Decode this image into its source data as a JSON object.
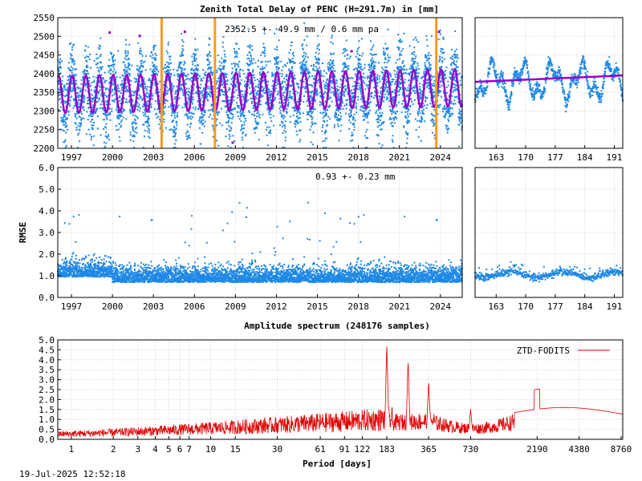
{
  "footer_date": "19-Jul-2025 12:52:18",
  "colors": {
    "blue": "#1e88e5",
    "purple": "#9b00c8",
    "orange": "#ff9a1e",
    "red": "#e00000"
  },
  "chart_data": [
    {
      "type": "scatter",
      "title": "Zenith Total Delay of PENC (H=291.7m) in [mm]",
      "annotation": "2352.5 +-  49.9 mm /  0.6 mm pa",
      "ylim": [
        2200,
        2550
      ],
      "yticks": [
        "2200",
        "2250",
        "2300",
        "2350",
        "2400",
        "2450",
        "2500",
        "2550"
      ],
      "xlim": [
        1996,
        2025.6
      ],
      "xticks": [
        "1997",
        "2000",
        "2003",
        "2006",
        "2009",
        "2012",
        "2015",
        "2018",
        "2021",
        "2024"
      ],
      "mean": 2352.5,
      "annual_amplitude": 49.9,
      "trend_mm_pa": 0.6,
      "vertical_markers": [
        2003.6,
        2007.5,
        2023.7
      ],
      "zoom_panel": {
        "xlim": [
          158,
          193
        ],
        "xticks": [
          "163",
          "170",
          "177",
          "184",
          "191"
        ],
        "model_start": 2378,
        "model_end": 2395
      }
    },
    {
      "type": "scatter",
      "ylabel": "RMSE",
      "annotation": "0.93 +-  0.23 mm",
      "ylim": [
        0,
        6
      ],
      "yticks": [
        "0.0",
        "1.0",
        "2.0",
        "3.0",
        "4.0",
        "5.0",
        "6.0"
      ],
      "xlim": [
        1996,
        2025.6
      ],
      "xticks": [
        "1997",
        "2000",
        "2003",
        "2006",
        "2009",
        "2012",
        "2015",
        "2018",
        "2021",
        "2024"
      ],
      "mean": 0.93,
      "std": 0.23,
      "zoom_panel": {
        "xlim": [
          158,
          193
        ],
        "xticks": [
          "163",
          "170",
          "177",
          "184",
          "191"
        ]
      }
    },
    {
      "type": "line",
      "title": "Amplitude spectrum (248176 samples)",
      "xlabel": "Period [days]",
      "legend": "ZTD-FODITS",
      "legend_position": "top-right",
      "ylim": [
        0,
        5
      ],
      "yticks": [
        "0.0",
        "0.5",
        "1.0",
        "1.5",
        "2.0",
        "2.5",
        "3.0",
        "3.5",
        "4.0",
        "4.5",
        "5.0"
      ],
      "xscale": "log",
      "xlim": [
        0.8,
        9000
      ],
      "xticks": [
        1,
        2,
        3,
        4,
        5,
        6,
        7,
        10,
        15,
        30,
        61,
        91,
        122,
        183,
        365,
        730,
        2190,
        4380,
        8760
      ],
      "peaks": [
        {
          "period": 183,
          "amplitude": 4.5
        },
        {
          "period": 260,
          "amplitude": 3.6
        },
        {
          "period": 365,
          "amplitude": 2.55
        },
        {
          "period": 730,
          "amplitude": 1.3
        },
        {
          "period": 2190,
          "amplitude": 2.5
        },
        {
          "period": 4380,
          "amplitude": 1.5
        },
        {
          "period": 8760,
          "amplitude": 1.4
        }
      ]
    }
  ]
}
